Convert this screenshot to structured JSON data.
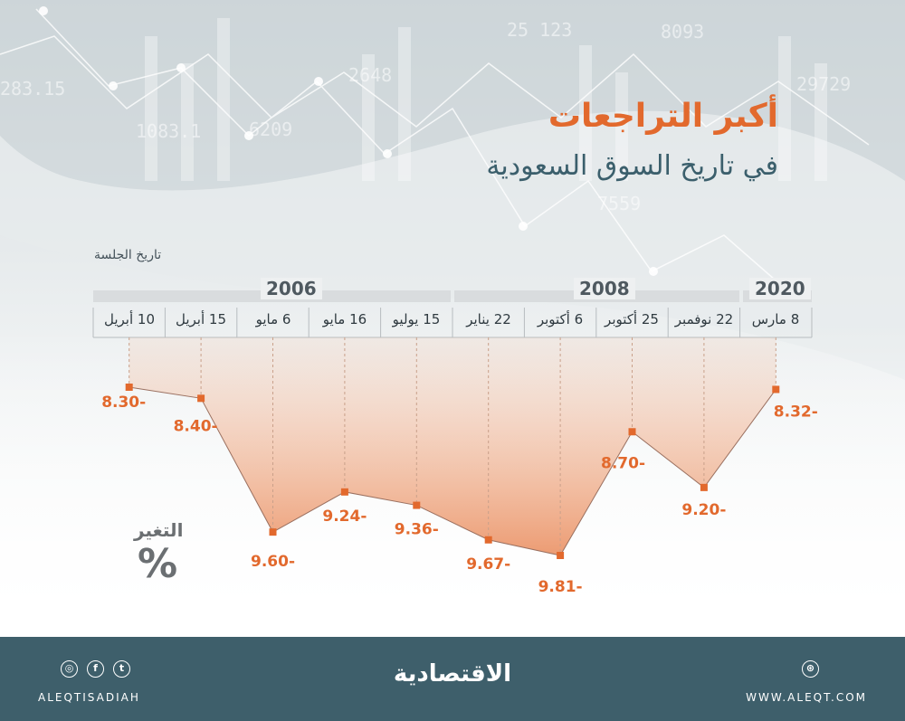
{
  "title": "أكبر التراجعات",
  "subtitle": "في تاريخ السوق السعودية",
  "xaxis_label": "تاريخ الجلسة",
  "yaxis_label": "التغير",
  "yaxis_unit": "%",
  "footer": {
    "handle": "ALEQTISADIAH",
    "website": "WWW.ALEQT.COM",
    "logo_text": "الاقتصادية",
    "social_icons": [
      "instagram-icon",
      "facebook-icon",
      "twitter-icon"
    ],
    "site_icon": "dribbble-icon"
  },
  "colors": {
    "accent": "#e2692d",
    "title_dark": "#3b5f6c",
    "footer_bg": "#3e5f6b"
  },
  "chart_data": {
    "type": "area",
    "years": [
      {
        "label": "2006",
        "count": 5
      },
      {
        "label": "2008",
        "count": 4
      },
      {
        "label": "2020",
        "count": 1
      }
    ],
    "categories": [
      "10 أبريل",
      "15 أبريل",
      "6 مايو",
      "16 مايو",
      "15 يوليو",
      "22 يناير",
      "6 أكتوبر",
      "25 أكتوبر",
      "22 نوفمبر",
      "8 مارس"
    ],
    "values": [
      -8.3,
      -8.4,
      -9.6,
      -9.24,
      -9.36,
      -9.67,
      -9.81,
      -8.7,
      -9.2,
      -8.32
    ],
    "value_labels": [
      "8.30-",
      "8.40-",
      "9.60-",
      "9.24-",
      "9.36-",
      "9.67-",
      "9.81-",
      "8.70-",
      "9.20-",
      "8.32-"
    ],
    "ylim": [
      -10,
      -8
    ]
  }
}
